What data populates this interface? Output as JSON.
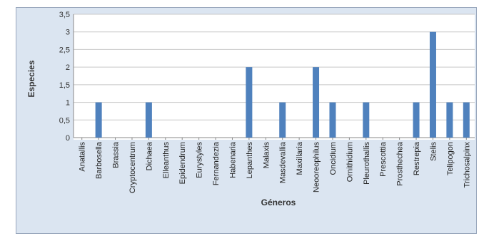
{
  "chart_data": {
    "type": "bar",
    "categories": [
      "Anatallis",
      "Barbosella",
      "Brassia",
      "Cryptocentrum",
      "Dichaea",
      "Elleanthus",
      "Epidendrum",
      "Eurystyles",
      "Fernandezia",
      "Habenaria",
      "Lepanthes",
      "Malaxis",
      "Masdevallia",
      "Maxillaria",
      "Neooreophilus",
      "Oncidium",
      "Ornithidium",
      "Pleurothallis",
      "Prescottia",
      "Prosthechea",
      "Restrepia",
      "Stelis",
      "Telipogon",
      "Trichosalpinx"
    ],
    "values": [
      0,
      1,
      0,
      0,
      1,
      0,
      0,
      0,
      0,
      0,
      2,
      0,
      1,
      0,
      2,
      1,
      0,
      1,
      0,
      0,
      1,
      3,
      1,
      1
    ],
    "yticks": [
      "0",
      "0,5",
      "1",
      "1,5",
      "2",
      "2,5",
      "3",
      "3,5"
    ],
    "ylim": [
      0,
      3.5
    ],
    "xlabel": "Géneros",
    "ylabel": "Especies",
    "bar_color": "#4f81bd",
    "gridlines": true,
    "legend": "none"
  }
}
